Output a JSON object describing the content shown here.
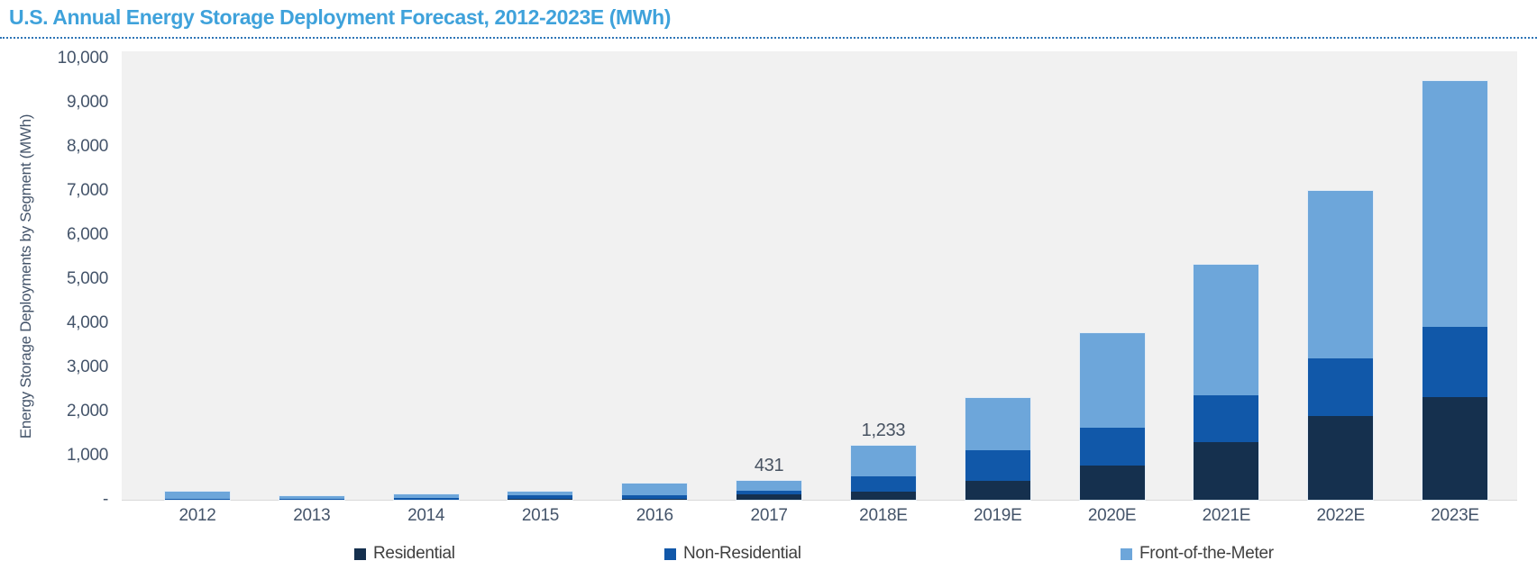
{
  "title": "U.S. Annual Energy Storage Deployment Forecast, 2012-2023E (MWh)",
  "chart_data": {
    "type": "bar",
    "stacked": true,
    "title": "U.S. Annual Energy Storage Deployment Forecast, 2012-2023E (MWh)",
    "xlabel": "",
    "ylabel": "Energy Storage Deployments by Segment (MWh)",
    "ylim": [
      0,
      10000
    ],
    "ytick_interval": 1000,
    "ytick_labels": [
      "-",
      "1,000",
      "2,000",
      "3,000",
      "4,000",
      "5,000",
      "6,000",
      "7,000",
      "8,000",
      "9,000",
      "10,000"
    ],
    "grid": false,
    "legend_position": "bottom",
    "categories": [
      "2012",
      "2013",
      "2014",
      "2015",
      "2016",
      "2017",
      "2018E",
      "2019E",
      "2020E",
      "2021E",
      "2022E",
      "2023E"
    ],
    "series": [
      {
        "name": "Residential",
        "color": "#15304E",
        "values": [
          5,
          5,
          5,
          10,
          25,
          120,
          178,
          437,
          778,
          1300,
          1905,
          2320
        ]
      },
      {
        "name": "Non-Residential",
        "color": "#1158A9",
        "values": [
          15,
          15,
          35,
          100,
          85,
          75,
          361,
          679,
          850,
          1070,
          1300,
          1600
        ]
      },
      {
        "name": "Front-of-the-Meter",
        "color": "#6DA6DA",
        "values": [
          160,
          55,
          85,
          70,
          250,
          236,
          694,
          1192,
          2142,
          2965,
          3795,
          5580
        ]
      }
    ],
    "totals": [
      180,
      75,
      125,
      180,
      360,
      431,
      1233,
      2308,
      3770,
      5335,
      7000,
      9500
    ],
    "data_labels": [
      {
        "category": "2017",
        "text": "431"
      },
      {
        "category": "2018E",
        "text": "1,233"
      }
    ]
  },
  "colors": {
    "title": "#3FA2DB",
    "divider": "#2E75B6",
    "plot_background": "#F1F1F1",
    "axis_text": "#44546A",
    "baseline": "#D9D9D9",
    "residential": "#15304E",
    "non_residential": "#1158A9",
    "front_of_the_meter": "#6DA6DA"
  }
}
